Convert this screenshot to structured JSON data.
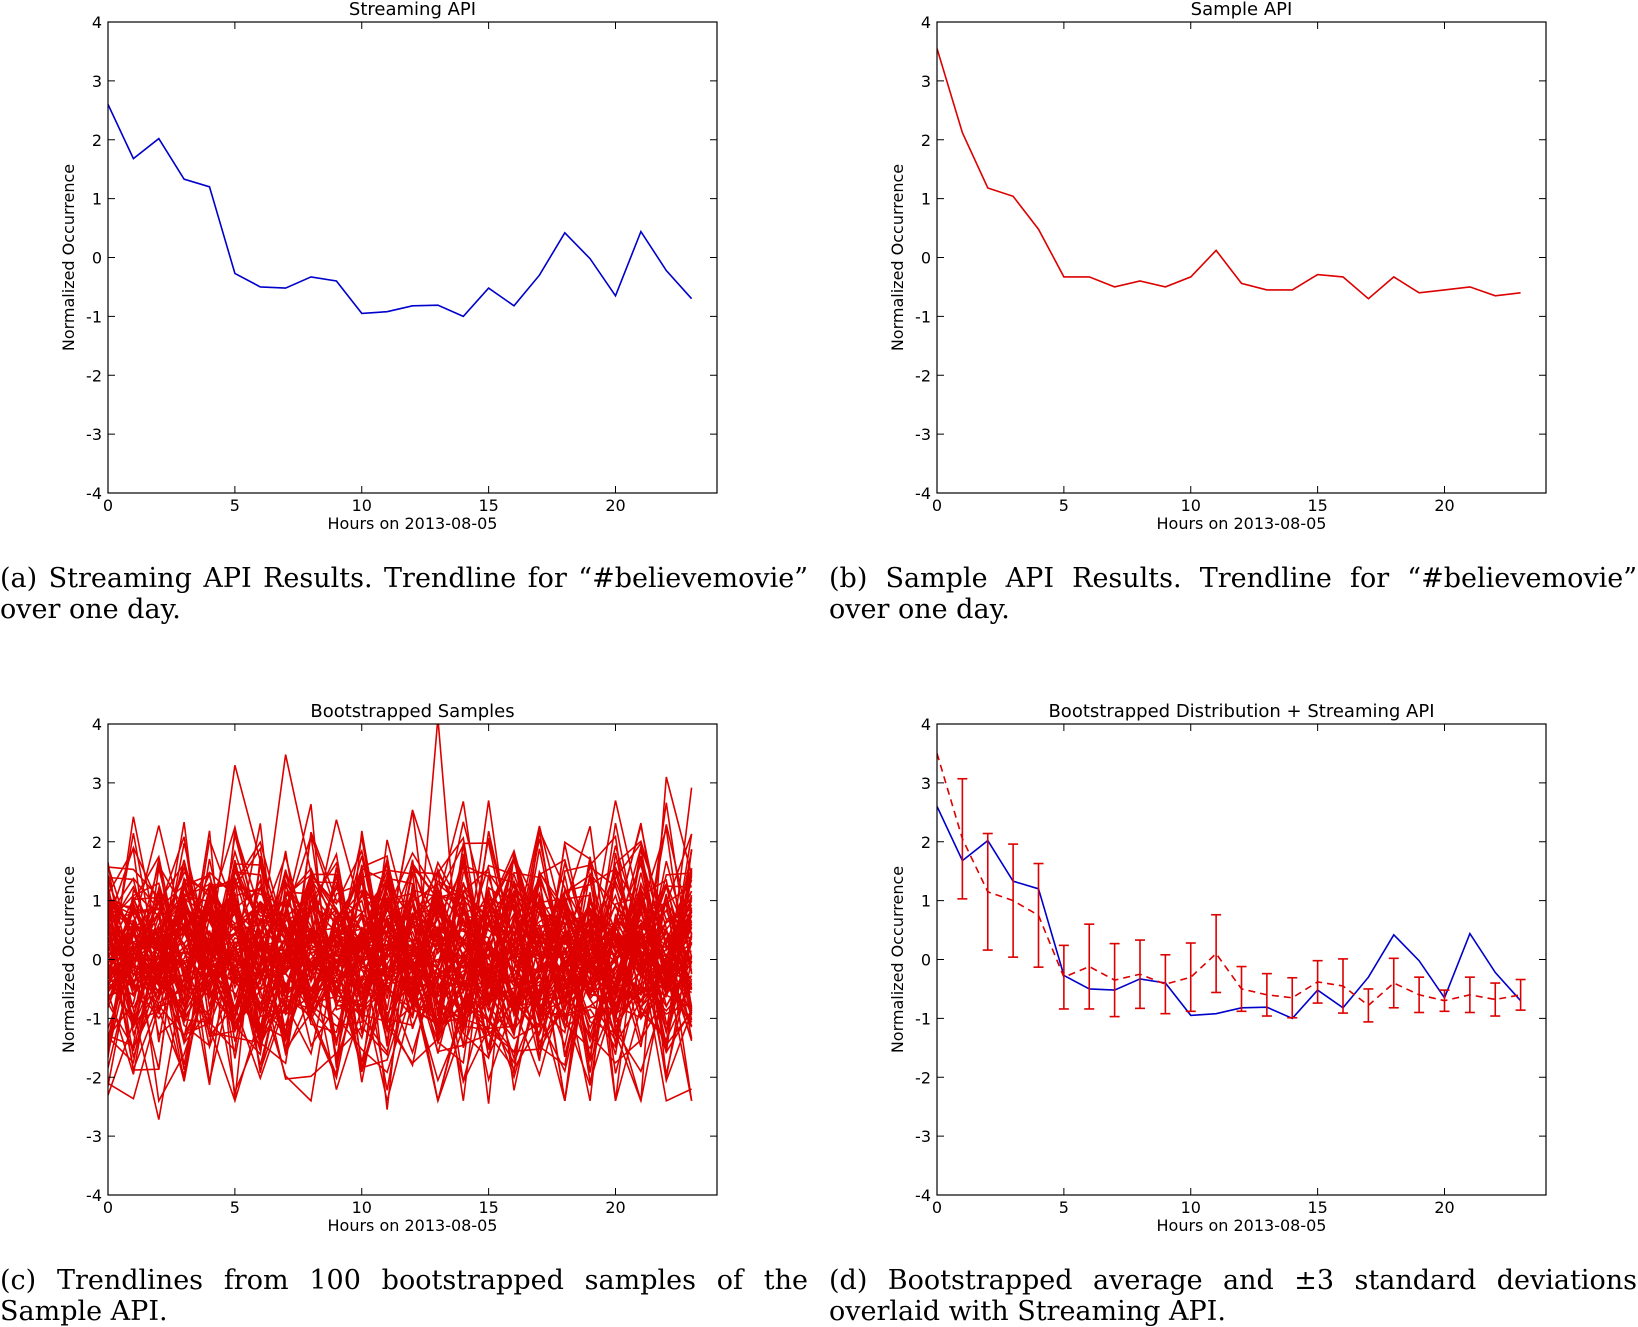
{
  "xlabel_common": "Hours on 2013-08-05",
  "ylabel_common": "Normalized Occurrence",
  "colors": {
    "streaming": "#0000cc",
    "sample": "#dd0000"
  },
  "captions": {
    "a": "(a) Streaming API Results. Trendline for “#believemovie” over one day.",
    "b": "(b) Sample API Results. Trendline for “#believemovie” over one day.",
    "c": "(c) Trendlines from 100 bootstrapped samples of the Sample API.",
    "d": "(d) Bootstrapped average and ±3 standard deviations overlaid with Streaming API."
  },
  "chart_data": [
    {
      "id": "a",
      "type": "line",
      "title": "Streaming API",
      "xlabel": "Hours on 2013-08-05",
      "ylabel": "Normalized Occurrence",
      "xlim": [
        0,
        24
      ],
      "ylim": [
        -4,
        4
      ],
      "xticks": [
        0,
        5,
        10,
        15,
        20
      ],
      "yticks": [
        -4,
        -3,
        -2,
        -1,
        0,
        1,
        2,
        3,
        4
      ],
      "grid": false,
      "series": [
        {
          "color": "#0000cc",
          "style": "solid",
          "x": [
            0,
            1,
            2,
            3,
            4,
            5,
            6,
            7,
            8,
            9,
            10,
            11,
            12,
            13,
            14,
            15,
            16,
            17,
            18,
            19,
            20,
            21,
            22,
            23
          ],
          "y": [
            2.6,
            1.68,
            2.02,
            1.33,
            1.2,
            -0.27,
            -0.5,
            -0.52,
            -0.33,
            -0.4,
            -0.95,
            -0.92,
            -0.82,
            -0.81,
            -1.0,
            -0.52,
            -0.82,
            -0.3,
            0.42,
            -0.02,
            -0.65,
            0.44,
            -0.22,
            -0.7
          ]
        }
      ]
    },
    {
      "id": "b",
      "type": "line",
      "title": "Sample API",
      "xlabel": "Hours on 2013-08-05",
      "ylabel": "Normalized Occurrence",
      "xlim": [
        0,
        24
      ],
      "ylim": [
        -4,
        4
      ],
      "xticks": [
        0,
        5,
        10,
        15,
        20
      ],
      "yticks": [
        -4,
        -3,
        -2,
        -1,
        0,
        1,
        2,
        3,
        4
      ],
      "grid": false,
      "series": [
        {
          "color": "#dd0000",
          "style": "solid",
          "x": [
            0,
            1,
            2,
            3,
            4,
            5,
            6,
            7,
            8,
            9,
            10,
            11,
            12,
            13,
            14,
            15,
            16,
            17,
            18,
            19,
            20,
            21,
            22,
            23
          ],
          "y": [
            3.55,
            2.12,
            1.18,
            1.04,
            0.48,
            -0.33,
            -0.33,
            -0.5,
            -0.4,
            -0.5,
            -0.33,
            0.12,
            -0.44,
            -0.55,
            -0.55,
            -0.29,
            -0.33,
            -0.7,
            -0.33,
            -0.6,
            -0.55,
            -0.5,
            -0.65,
            -0.6
          ]
        }
      ]
    },
    {
      "id": "c",
      "type": "line",
      "title": "Bootstrapped Samples",
      "xlabel": "Hours on 2013-08-05",
      "ylabel": "Normalized Occurrence",
      "xlim": [
        0,
        24
      ],
      "ylim": [
        -4,
        4
      ],
      "xticks": [
        0,
        5,
        10,
        15,
        20
      ],
      "yticks": [
        -4,
        -3,
        -2,
        -1,
        0,
        1,
        2,
        3,
        4
      ],
      "grid": false,
      "sample_count": 100,
      "approx_range": [
        -2.7,
        4.1
      ],
      "peaks": [
        {
          "x": 13,
          "y": 4.1
        },
        {
          "x": 7,
          "y": 3.48
        },
        {
          "x": 5,
          "y": 3.3
        },
        {
          "x": 22,
          "y": 3.1
        },
        {
          "x": 23,
          "y": 2.92
        },
        {
          "x": 2,
          "y": -2.72
        },
        {
          "x": 11,
          "y": -2.55
        },
        {
          "x": 15,
          "y": -2.45
        },
        {
          "x": 23,
          "y": -2.2
        }
      ],
      "color": "#dd0000"
    },
    {
      "id": "d",
      "type": "line",
      "title": "Bootstrapped Distribution + Streaming API",
      "xlabel": "Hours on 2013-08-05",
      "ylabel": "Normalized Occurrence",
      "xlim": [
        0,
        24
      ],
      "ylim": [
        -4,
        4
      ],
      "xticks": [
        0,
        5,
        10,
        15,
        20
      ],
      "yticks": [
        -4,
        -3,
        -2,
        -1,
        0,
        1,
        2,
        3,
        4
      ],
      "grid": false,
      "series": [
        {
          "color": "#0000cc",
          "style": "solid",
          "x": [
            0,
            1,
            2,
            3,
            4,
            5,
            6,
            7,
            8,
            9,
            10,
            11,
            12,
            13,
            14,
            15,
            16,
            17,
            18,
            19,
            20,
            21,
            22,
            23
          ],
          "y": [
            2.6,
            1.68,
            2.02,
            1.33,
            1.2,
            -0.27,
            -0.5,
            -0.52,
            -0.33,
            -0.4,
            -0.95,
            -0.92,
            -0.82,
            -0.81,
            -1.0,
            -0.52,
            -0.82,
            -0.3,
            0.42,
            -0.02,
            -0.65,
            0.44,
            -0.22,
            -0.7
          ]
        },
        {
          "color": "#dd0000",
          "style": "dashed",
          "x": [
            0,
            1,
            2,
            3,
            4,
            5,
            6,
            7,
            8,
            9,
            10,
            11,
            12,
            13,
            14,
            15,
            16,
            17,
            18,
            19,
            20,
            21,
            22,
            23
          ],
          "y": [
            3.5,
            2.05,
            1.15,
            1.0,
            0.75,
            -0.3,
            -0.12,
            -0.35,
            -0.25,
            -0.42,
            -0.3,
            0.1,
            -0.5,
            -0.6,
            -0.65,
            -0.38,
            -0.45,
            -0.78,
            -0.4,
            -0.6,
            -0.7,
            -0.6,
            -0.68,
            -0.6
          ],
          "errors": [
            0.0,
            1.02,
            0.99,
            0.96,
            0.88,
            0.54,
            0.72,
            0.62,
            0.58,
            0.5,
            0.58,
            0.66,
            0.38,
            0.36,
            0.34,
            0.36,
            0.46,
            0.28,
            0.42,
            0.3,
            0.18,
            0.3,
            0.28,
            0.26
          ]
        }
      ]
    }
  ]
}
